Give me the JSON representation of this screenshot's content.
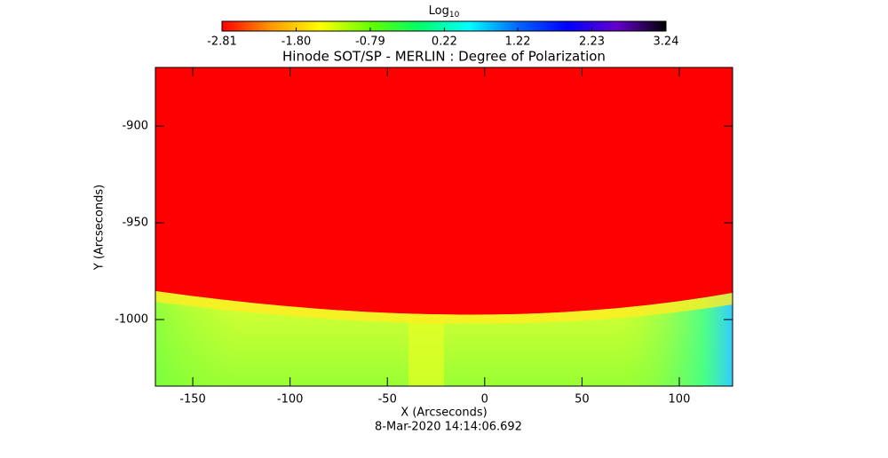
{
  "chart_data": {
    "type": "image",
    "title": "Hinode SOT/SP - MERLIN : Degree of Polarization",
    "x_label": "X (Arcseconds)",
    "y_label": "Y (Arcseconds)",
    "footer": "8-Mar-2020 14:14:06.692",
    "xlim": [
      -169.2,
      127.4
    ],
    "ylim": [
      -1034.4,
      -869.7
    ],
    "xticks": [
      -150,
      -100,
      -50,
      0,
      50,
      100
    ],
    "yticks": [
      -1000,
      -950,
      -900
    ],
    "colorbar": {
      "label": {
        "base": "Log",
        "subscript": "10"
      },
      "range": [
        -2.81,
        3.24
      ],
      "ticks": [
        -2.81,
        {
          "value": -1.8,
          "label": "-1.80"
        },
        -0.79,
        0.22,
        1.22,
        2.23,
        3.24
      ],
      "colormap": [
        "#ff0000",
        "#ff9900",
        "#ffff00",
        "#66ff00",
        "#00ff66",
        "#00ffff",
        "#0066ff",
        "#0000ff",
        "#6600cc",
        "#000000"
      ]
    }
  }
}
